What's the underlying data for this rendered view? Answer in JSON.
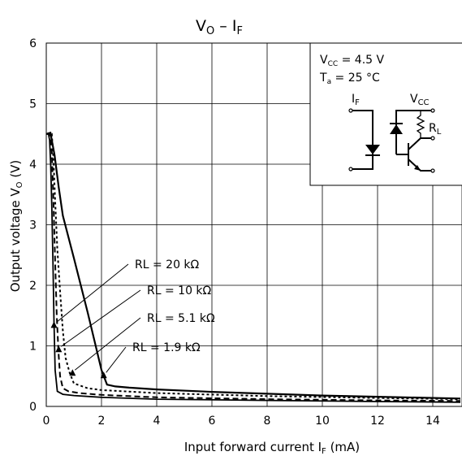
{
  "chart_data": {
    "type": "line",
    "title": {
      "main": "V",
      "main_sub": "O",
      "sep": " – ",
      "tail": "I",
      "tail_sub": "F"
    },
    "xlabel": {
      "pre": "Input forward current   I",
      "sub": "F",
      "post": " (mA)"
    },
    "ylabel": {
      "pre": "Output voltage   V",
      "sub": "O",
      "post": " (V)"
    },
    "xlim": [
      0,
      15
    ],
    "ylim": [
      0,
      6
    ],
    "x_ticks": [
      0,
      2,
      4,
      6,
      8,
      10,
      12,
      14
    ],
    "y_ticks": [
      0,
      1,
      2,
      3,
      4,
      5,
      6
    ],
    "grid": true,
    "conditions": {
      "vcc_pre": "V",
      "vcc_sub": "CC",
      "vcc_post": " =  4.5 V",
      "ta_pre": "T",
      "ta_sub": "a",
      "ta_post": " = 25 °C"
    },
    "schematic": {
      "if_main": "I",
      "if_sub": "F",
      "vcc_main": "V",
      "vcc_sub": "CC",
      "rl_main": "R",
      "rl_sub": "L"
    },
    "series": [
      {
        "name": "RL = 20 kΩ",
        "dash": "none",
        "width": 1.8,
        "x": [
          0.02,
          0.08,
          0.12,
          0.16,
          0.2,
          0.24,
          0.28,
          0.32,
          0.4,
          0.6,
          1,
          2,
          4,
          8,
          12,
          15
        ],
        "y": [
          4.5,
          4.5,
          4.4,
          4.0,
          3.3,
          2.4,
          1.4,
          0.6,
          0.25,
          0.2,
          0.18,
          0.15,
          0.12,
          0.1,
          0.08,
          0.07
        ],
        "marker": [
          0.28,
          1.35
        ]
      },
      {
        "name": "RL = 10 kΩ",
        "dash": "7,4",
        "width": 2,
        "x": [
          0.02,
          0.14,
          0.2,
          0.26,
          0.32,
          0.38,
          0.44,
          0.5,
          0.6,
          0.8,
          1.2,
          2,
          4,
          8,
          12,
          15
        ],
        "y": [
          4.5,
          4.5,
          4.2,
          3.4,
          2.4,
          1.5,
          0.9,
          0.5,
          0.3,
          0.25,
          0.22,
          0.19,
          0.15,
          0.12,
          0.1,
          0.09
        ],
        "marker": [
          0.45,
          0.95
        ]
      },
      {
        "name": "RL = 5.1 kΩ",
        "dash": "3,3",
        "width": 2,
        "x": [
          0.02,
          0.2,
          0.26,
          0.32,
          0.4,
          0.5,
          0.6,
          0.7,
          0.85,
          1.0,
          1.5,
          2,
          4,
          8,
          12,
          15
        ],
        "y": [
          4.5,
          4.5,
          4.1,
          3.4,
          2.6,
          1.9,
          1.25,
          0.8,
          0.55,
          0.38,
          0.3,
          0.27,
          0.22,
          0.17,
          0.14,
          0.12
        ],
        "marker": [
          0.95,
          0.56
        ]
      },
      {
        "name": "RL = 1.9 kΩ",
        "dash": "none",
        "width": 2.2,
        "x": [
          0.0,
          0.15,
          0.3,
          0.45,
          0.6,
          1.0,
          1.5,
          2.0,
          2.2,
          2.5,
          3,
          4,
          6,
          8,
          10,
          12,
          15
        ],
        "y": [
          4.5,
          4.52,
          4.15,
          3.62,
          3.15,
          2.45,
          1.55,
          0.6,
          0.36,
          0.33,
          0.31,
          0.28,
          0.24,
          0.21,
          0.18,
          0.16,
          0.13
        ],
        "marker": [
          2.08,
          0.52
        ]
      }
    ]
  }
}
